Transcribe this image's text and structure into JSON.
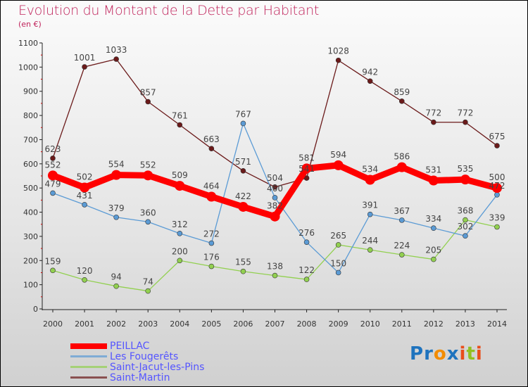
{
  "chart_data": {
    "type": "line",
    "title": "Evolution du Montant de la Dette par Habitant",
    "subtitle": "(en €)",
    "x": [
      "2000",
      "2001",
      "2002",
      "2003",
      "2004",
      "2005",
      "2006",
      "2007",
      "2008",
      "2009",
      "2010",
      "2011",
      "2012",
      "2013",
      "2014"
    ],
    "yticks": [
      "0",
      "100",
      "200",
      "300",
      "400",
      "500",
      "600",
      "700",
      "800",
      "900",
      "1000",
      "1100"
    ],
    "ylim": [
      0,
      1100
    ],
    "series": [
      {
        "name": "PEILLAC",
        "color": "#ff0000",
        "values": [
          552,
          502,
          554,
          552,
          509,
          464,
          422,
          382,
          581,
          594,
          534,
          586,
          531,
          535,
          500
        ]
      },
      {
        "name": "Les Fougerêts",
        "color": "#5b9bd5",
        "values": [
          479,
          431,
          379,
          360,
          312,
          272,
          767,
          460,
          276,
          150,
          391,
          367,
          334,
          302,
          472
        ]
      },
      {
        "name": "Saint-Jacut-les-Pins",
        "color": "#92d050",
        "values": [
          159,
          120,
          94,
          74,
          200,
          176,
          155,
          138,
          122,
          265,
          244,
          224,
          205,
          368,
          339
        ]
      },
      {
        "name": "Saint-Martin",
        "color": "#6b1a1a",
        "values": [
          623,
          1001,
          1033,
          857,
          761,
          663,
          571,
          504,
          541,
          1028,
          942,
          859,
          772,
          772,
          675
        ]
      }
    ],
    "legend": "bottom-left"
  },
  "logo": {
    "text": "Proxiti",
    "colors": [
      "#1e73be",
      "#1e73be",
      "#f28c00",
      "#1e73be",
      "#e94e1b",
      "#92c020",
      "#e94e1b"
    ]
  }
}
